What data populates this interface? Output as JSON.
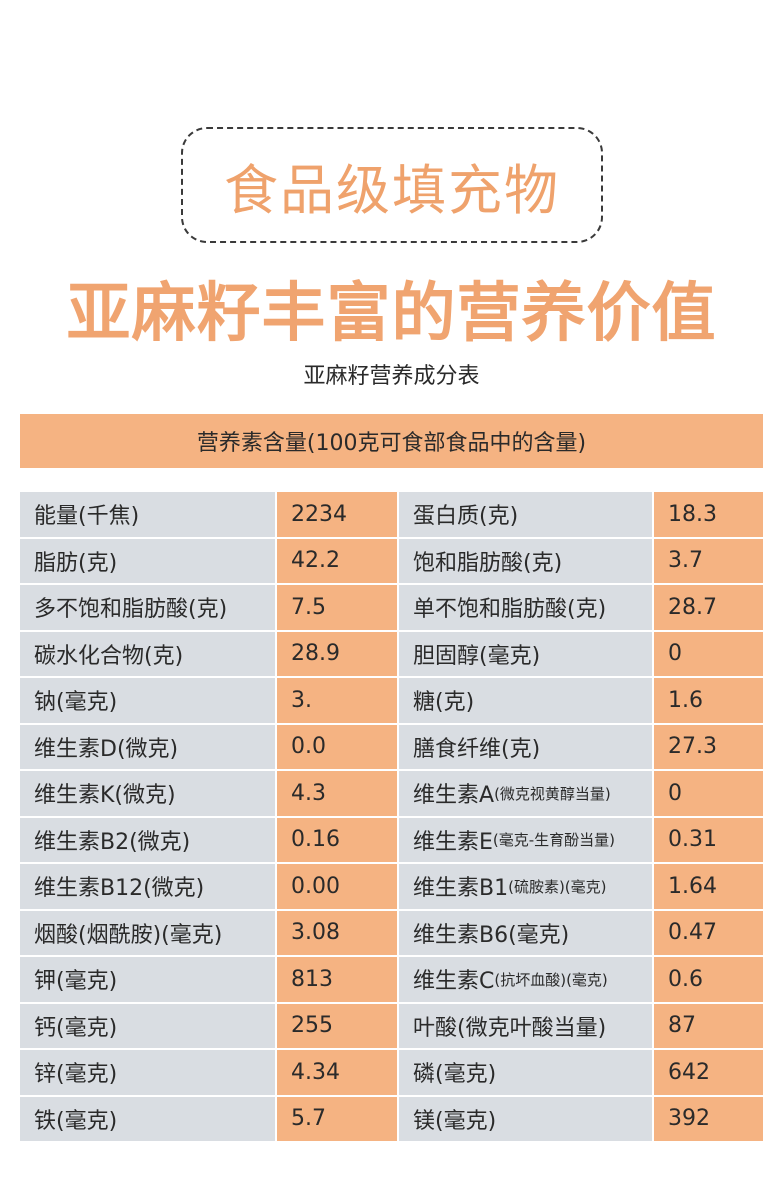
{
  "badge": "食品级填充物",
  "headline": "亚麻籽丰富的营养价值",
  "subtitle": "亚麻籽营养成分表",
  "table_header": "营养素含量(100克可食部食品中的含量)",
  "rows": [
    {
      "n1": "能量(千焦)",
      "n1s": "",
      "v1": "2234",
      "n2": "蛋白质(克)",
      "n2s": "",
      "v2": "18.3"
    },
    {
      "n1": "脂肪(克)",
      "n1s": "",
      "v1": "42.2",
      "n2": "饱和脂肪酸(克)",
      "n2s": "",
      "v2": "3.7"
    },
    {
      "n1": "多不饱和脂肪酸(克)",
      "n1s": "",
      "v1": "7.5",
      "n2": "单不饱和脂肪酸(克)",
      "n2s": "",
      "v2": "28.7"
    },
    {
      "n1": "碳水化合物(克)",
      "n1s": "",
      "v1": "28.9",
      "n2": "胆固醇(毫克)",
      "n2s": "",
      "v2": "0"
    },
    {
      "n1": "钠(毫克)",
      "n1s": "",
      "v1": "3.",
      "n2": "糖(克)",
      "n2s": "",
      "v2": "1.6"
    },
    {
      "n1": "维生素D(微克)",
      "n1s": "",
      "v1": "0.0",
      "n2": "膳食纤维(克)",
      "n2s": "",
      "v2": "27.3"
    },
    {
      "n1": "维生素K(微克)",
      "n1s": "",
      "v1": "4.3",
      "n2": "维生素A",
      "n2s": "(微克视黄醇当量)",
      "v2": "0"
    },
    {
      "n1": "维生素B2(微克)",
      "n1s": "",
      "v1": "0.16",
      "n2": "维生素E",
      "n2s": "(毫克-生育酚当量)",
      "v2": "0.31"
    },
    {
      "n1": "维生素B12(微克)",
      "n1s": "",
      "v1": "0.00",
      "n2": "维生素B1",
      "n2s": "(硫胺素)(毫克)",
      "v2": "1.64"
    },
    {
      "n1": "烟酸(烟酰胺)(毫克)",
      "n1s": "",
      "v1": "3.08",
      "n2": "维生素B6(毫克)",
      "n2s": "",
      "v2": "0.47"
    },
    {
      "n1": "钾(毫克)",
      "n1s": "",
      "v1": "813",
      "n2": "维生素C",
      "n2s": "(抗坏血酸)(毫克)",
      "v2": "0.6"
    },
    {
      "n1": "钙(毫克)",
      "n1s": "",
      "v1": "255",
      "n2": "叶酸(微克叶酸当量)",
      "n2s": "",
      "v2": "87"
    },
    {
      "n1": "锌(毫克)",
      "n1s": "",
      "v1": "4.34",
      "n2": "磷(毫克)",
      "n2s": "",
      "v2": "642"
    },
    {
      "n1": "铁(毫克)",
      "n1s": "",
      "v1": "5.7",
      "n2": "镁(毫克)",
      "n2s": "",
      "v2": "392"
    }
  ]
}
